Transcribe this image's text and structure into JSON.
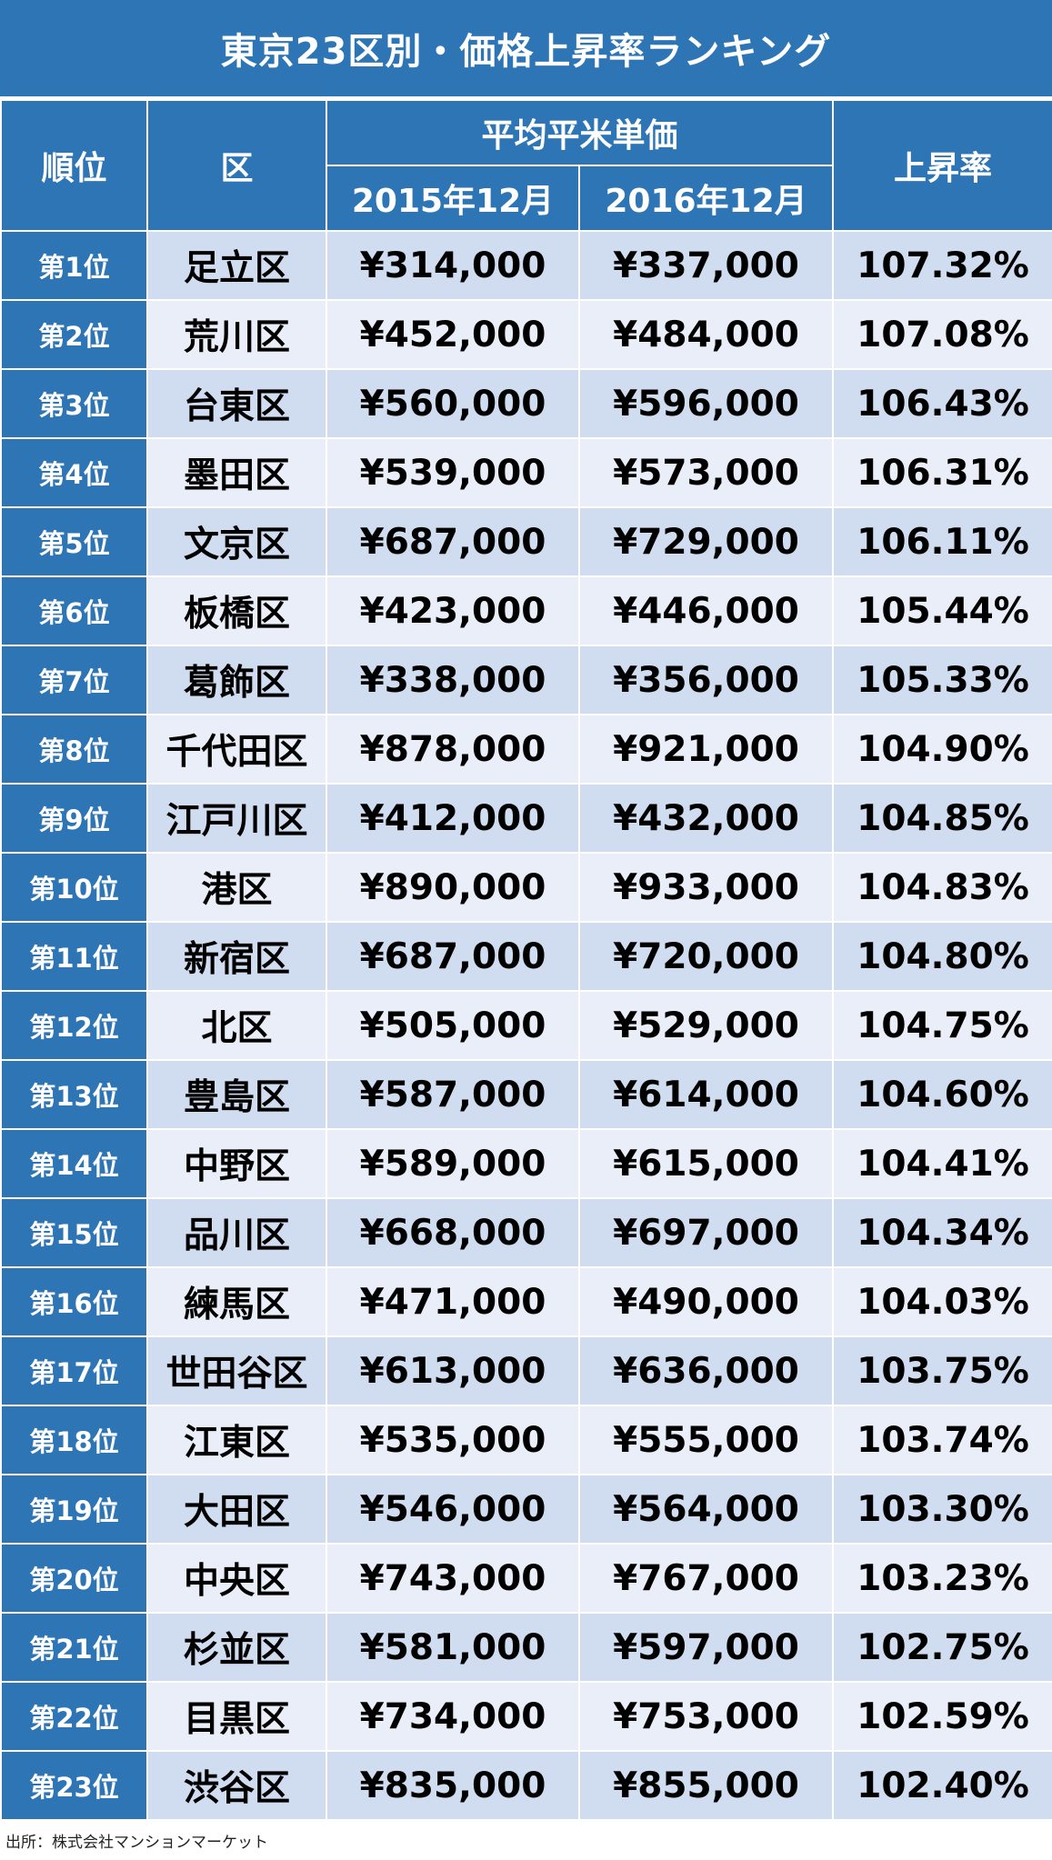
{
  "chart_data": {
    "type": "table",
    "title": "東京23区別・価格上昇率ランキング",
    "headers": {
      "rank": "順位",
      "ward": "区",
      "avg_price_group": "平均平米単価",
      "col_2015": "2015年12月",
      "col_2016": "2016年12月",
      "rate": "上昇率"
    },
    "rows": [
      {
        "rank": "第1位",
        "ward": "足立区",
        "p2015": "¥314,000",
        "p2016": "¥337,000",
        "rate": "107.32%"
      },
      {
        "rank": "第2位",
        "ward": "荒川区",
        "p2015": "¥452,000",
        "p2016": "¥484,000",
        "rate": "107.08%"
      },
      {
        "rank": "第3位",
        "ward": "台東区",
        "p2015": "¥560,000",
        "p2016": "¥596,000",
        "rate": "106.43%"
      },
      {
        "rank": "第4位",
        "ward": "墨田区",
        "p2015": "¥539,000",
        "p2016": "¥573,000",
        "rate": "106.31%"
      },
      {
        "rank": "第5位",
        "ward": "文京区",
        "p2015": "¥687,000",
        "p2016": "¥729,000",
        "rate": "106.11%"
      },
      {
        "rank": "第6位",
        "ward": "板橋区",
        "p2015": "¥423,000",
        "p2016": "¥446,000",
        "rate": "105.44%"
      },
      {
        "rank": "第7位",
        "ward": "葛飾区",
        "p2015": "¥338,000",
        "p2016": "¥356,000",
        "rate": "105.33%"
      },
      {
        "rank": "第8位",
        "ward": "千代田区",
        "p2015": "¥878,000",
        "p2016": "¥921,000",
        "rate": "104.90%"
      },
      {
        "rank": "第9位",
        "ward": "江戸川区",
        "p2015": "¥412,000",
        "p2016": "¥432,000",
        "rate": "104.85%"
      },
      {
        "rank": "第10位",
        "ward": "港区",
        "p2015": "¥890,000",
        "p2016": "¥933,000",
        "rate": "104.83%"
      },
      {
        "rank": "第11位",
        "ward": "新宿区",
        "p2015": "¥687,000",
        "p2016": "¥720,000",
        "rate": "104.80%"
      },
      {
        "rank": "第12位",
        "ward": "北区",
        "p2015": "¥505,000",
        "p2016": "¥529,000",
        "rate": "104.75%"
      },
      {
        "rank": "第13位",
        "ward": "豊島区",
        "p2015": "¥587,000",
        "p2016": "¥614,000",
        "rate": "104.60%"
      },
      {
        "rank": "第14位",
        "ward": "中野区",
        "p2015": "¥589,000",
        "p2016": "¥615,000",
        "rate": "104.41%"
      },
      {
        "rank": "第15位",
        "ward": "品川区",
        "p2015": "¥668,000",
        "p2016": "¥697,000",
        "rate": "104.34%"
      },
      {
        "rank": "第16位",
        "ward": "練馬区",
        "p2015": "¥471,000",
        "p2016": "¥490,000",
        "rate": "104.03%"
      },
      {
        "rank": "第17位",
        "ward": "世田谷区",
        "p2015": "¥613,000",
        "p2016": "¥636,000",
        "rate": "103.75%"
      },
      {
        "rank": "第18位",
        "ward": "江東区",
        "p2015": "¥535,000",
        "p2016": "¥555,000",
        "rate": "103.74%"
      },
      {
        "rank": "第19位",
        "ward": "大田区",
        "p2015": "¥546,000",
        "p2016": "¥564,000",
        "rate": "103.30%"
      },
      {
        "rank": "第20位",
        "ward": "中央区",
        "p2015": "¥743,000",
        "p2016": "¥767,000",
        "rate": "103.23%"
      },
      {
        "rank": "第21位",
        "ward": "杉並区",
        "p2015": "¥581,000",
        "p2016": "¥597,000",
        "rate": "102.75%"
      },
      {
        "rank": "第22位",
        "ward": "目黒区",
        "p2015": "¥734,000",
        "p2016": "¥753,000",
        "rate": "102.59%"
      },
      {
        "rank": "第23位",
        "ward": "渋谷区",
        "p2015": "¥835,000",
        "p2016": "¥855,000",
        "rate": "102.40%"
      }
    ],
    "source": "出所：株式会社マンションマーケット"
  },
  "colors": {
    "header_blue": "#2e75b6",
    "row_band_dark": "#d0dcef",
    "row_band_light": "#e9eef8"
  }
}
